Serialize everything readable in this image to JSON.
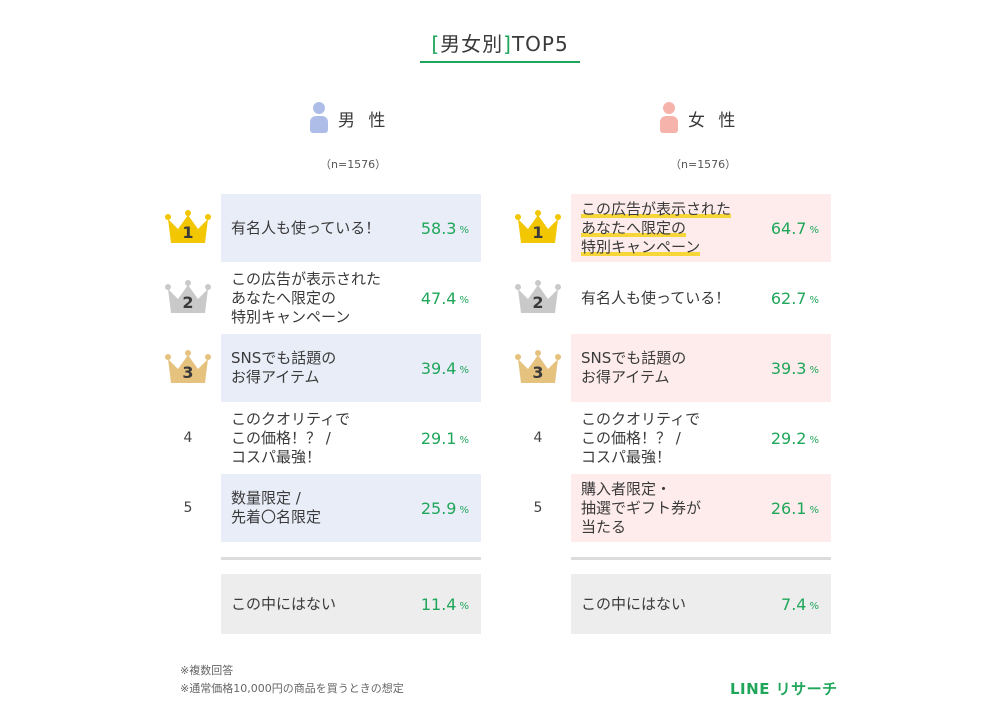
{
  "title": {
    "bracket_open": "[",
    "text": "男女別",
    "bracket_close": "]",
    "suffix": "TOP5"
  },
  "colors": {
    "accent": "#1fa65a",
    "male_person": "#aebde8",
    "female_person": "#f6b3ac",
    "gold": "#f2c600",
    "silver": "#c9c9c9",
    "bronze": "#e6c27f"
  },
  "male": {
    "label": "男 性",
    "n": "（n=1576）",
    "rows": [
      {
        "rank": "1",
        "label": "有名人も使っている！",
        "value": "58.3",
        "unit": "%"
      },
      {
        "rank": "2",
        "label": "この広告が表示された\nあなたへ限定の\n特別キャンペーン",
        "value": "47.4",
        "unit": "%"
      },
      {
        "rank": "3",
        "label": "SNSでも話題の\nお得アイテム",
        "value": "39.4",
        "unit": "%"
      },
      {
        "rank": "4",
        "label": "このクオリティで\nこの価格！？ /\nコスパ最強！",
        "value": "29.1",
        "unit": "%"
      },
      {
        "rank": "5",
        "label": "数量限定 /\n先着〇名限定",
        "value": "25.9",
        "unit": "%"
      }
    ],
    "other": {
      "label": "この中にはない",
      "value": "11.4",
      "unit": "%"
    }
  },
  "female": {
    "label": "女 性",
    "n": "（n=1576）",
    "rows": [
      {
        "rank": "1",
        "label": "この広告が表示された\nあなたへ限定の\n特別キャンペーン",
        "value": "64.7",
        "unit": "%"
      },
      {
        "rank": "2",
        "label": "有名人も使っている！",
        "value": "62.7",
        "unit": "%"
      },
      {
        "rank": "3",
        "label": "SNSでも話題の\nお得アイテム",
        "value": "39.3",
        "unit": "%"
      },
      {
        "rank": "4",
        "label": "このクオリティで\nこの価格！？ /\nコスパ最強！",
        "value": "29.2",
        "unit": "%"
      },
      {
        "rank": "5",
        "label": "購入者限定・\n抽選でギフト券が\n当たる",
        "value": "26.1",
        "unit": "%"
      }
    ],
    "other": {
      "label": "この中にはない",
      "value": "7.4",
      "unit": "%"
    }
  },
  "notes": [
    "※複数回答",
    "※通常価格10,000円の商品を買うときの想定"
  ],
  "brand": "LINE リサーチ",
  "chart_data": {
    "type": "table",
    "title": "[男女別]TOP5",
    "series": [
      {
        "name": "男 性",
        "categories": [
          "有名人も使っている！",
          "この広告が表示されたあなたへ限定の特別キャンペーン",
          "SNSでも話題のお得アイテム",
          "このクオリティでこの価格！？ /コスパ最強！",
          "数量限定 /先着〇名限定",
          "この中にはない"
        ],
        "values": [
          58.3,
          47.4,
          39.4,
          29.1,
          25.9,
          11.4
        ]
      },
      {
        "name": "女 性",
        "categories": [
          "この広告が表示されたあなたへ限定の特別キャンペーン",
          "有名人も使っている！",
          "SNSでも話題のお得アイテム",
          "このクオリティでこの価格！？ /コスパ最強！",
          "購入者限定・抽選でギフト券が当たる",
          "この中にはない"
        ],
        "values": [
          64.7,
          62.7,
          39.3,
          29.2,
          26.1,
          7.4
        ]
      }
    ]
  }
}
